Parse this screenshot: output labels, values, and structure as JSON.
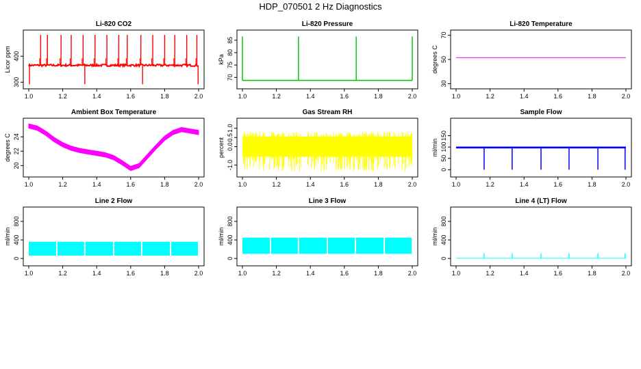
{
  "title": "HDP_070501  2 Hz Diagnostics",
  "chart_data": [
    {
      "type": "line",
      "title": "Li-820 CO2",
      "ylabel": "Licor ppm",
      "color": "#ff0000",
      "xlim": [
        1.0,
        2.0
      ],
      "ylim": [
        285,
        490
      ],
      "xticks": [
        "1.0",
        "1.2",
        "1.4",
        "1.6",
        "1.8",
        "2.0"
      ],
      "yticks": [
        "300",
        "400"
      ],
      "baseline": 365,
      "spikes_up": [
        1.07,
        1.11,
        1.19,
        1.25,
        1.32,
        1.39,
        1.46,
        1.53,
        1.58,
        1.66,
        1.73,
        1.8,
        1.86,
        1.93,
        1.99
      ],
      "spikes_down": [
        1.004,
        1.33,
        1.67,
        1.997
      ]
    },
    {
      "type": "line",
      "title": "Li-820 Pressure",
      "ylabel": "kPa",
      "color": "#00c000",
      "xlim": [
        1.0,
        2.0
      ],
      "ylim": [
        66.5,
        88
      ],
      "xticks": [
        "1.0",
        "1.2",
        "1.4",
        "1.6",
        "1.8",
        "2.0"
      ],
      "yticks": [
        "70",
        "75",
        "80",
        "85"
      ],
      "baseline": 68.8,
      "spikes_up": [
        1.0,
        1.33,
        1.67,
        2.0
      ],
      "spike_top": 86.5
    },
    {
      "type": "line",
      "title": "Li-820 Temperature",
      "ylabel": "degrees C",
      "color": "#ff00ff",
      "xlim": [
        1.0,
        2.0
      ],
      "ylim": [
        28,
        72
      ],
      "xticks": [
        "1.0",
        "1.2",
        "1.4",
        "1.6",
        "1.8",
        "2.0"
      ],
      "yticks": [
        "30",
        "50",
        "70"
      ],
      "baseline": 51.5
    },
    {
      "type": "area",
      "title": "Ambient Box Temperature",
      "ylabel": "degrees C",
      "color": "#ff00ff",
      "xlim": [
        1.0,
        2.0
      ],
      "ylim": [
        18.8,
        26.2
      ],
      "xticks": [
        "1.0",
        "1.2",
        "1.4",
        "1.6",
        "1.8",
        "2.0"
      ],
      "yticks": [
        "20",
        "22",
        "24"
      ],
      "x": [
        1.0,
        1.05,
        1.1,
        1.15,
        1.2,
        1.25,
        1.3,
        1.35,
        1.4,
        1.45,
        1.5,
        1.55,
        1.6,
        1.65,
        1.7,
        1.75,
        1.8,
        1.85,
        1.9,
        1.95,
        2.0
      ],
      "y": [
        25.5,
        25.2,
        24.5,
        23.6,
        22.9,
        22.4,
        22.1,
        21.9,
        21.7,
        21.5,
        21.1,
        20.4,
        19.6,
        20.0,
        21.3,
        22.6,
        23.8,
        24.6,
        25.0,
        24.8,
        24.6
      ],
      "band": 0.6
    },
    {
      "type": "area",
      "title": "Gas Stream RH",
      "ylabel": "percent",
      "color": "#ffff00",
      "xlim": [
        1.0,
        2.0
      ],
      "ylim": [
        -1.5,
        1.4
      ],
      "xticks": [
        "1.0",
        "1.2",
        "1.4",
        "1.6",
        "1.8",
        "2.0"
      ],
      "yticks": [
        "-1.0",
        "0.0",
        "0.5",
        "1.0"
      ],
      "band_low": -0.55,
      "band_high": 0.55,
      "min": -1.35,
      "max": 1.0
    },
    {
      "type": "line",
      "title": "Sample Flow",
      "ylabel": "ml/min",
      "color": "#0000ff",
      "xlim": [
        1.0,
        2.0
      ],
      "ylim": [
        -20,
        215
      ],
      "xticks": [
        "1.0",
        "1.2",
        "1.4",
        "1.6",
        "1.8",
        "2.0"
      ],
      "yticks": [
        "0",
        "50",
        "100",
        "150"
      ],
      "baseline": 98,
      "dips": [
        1.165,
        1.33,
        1.5,
        1.665,
        1.835,
        1.995
      ]
    },
    {
      "type": "area",
      "title": "Line 2 Flow",
      "ylabel": "ml/min",
      "color": "#00ffff",
      "xlim": [
        1.0,
        2.0
      ],
      "ylim": [
        -100,
        1050
      ],
      "xticks": [
        "1.0",
        "1.2",
        "1.4",
        "1.6",
        "1.8",
        "2.0"
      ],
      "yticks": [
        "0",
        "400",
        "800"
      ],
      "band_low": 60,
      "band_high": 360,
      "gaps": [
        1.165,
        1.33,
        1.5,
        1.665,
        1.835
      ]
    },
    {
      "type": "area",
      "title": "Line 3 Flow",
      "ylabel": "ml/min",
      "color": "#00ffff",
      "xlim": [
        1.0,
        2.0
      ],
      "ylim": [
        -100,
        1050
      ],
      "xticks": [
        "1.0",
        "1.2",
        "1.4",
        "1.6",
        "1.8",
        "2.0"
      ],
      "yticks": [
        "0",
        "400",
        "800"
      ],
      "band_low": 100,
      "band_high": 450,
      "gaps": [
        1.165,
        1.33,
        1.5,
        1.665,
        1.835
      ]
    },
    {
      "type": "line",
      "title": "Line 4 (LT) Flow",
      "ylabel": "ml/min",
      "color": "#00ffff",
      "xlim": [
        1.0,
        2.0
      ],
      "ylim": [
        -100,
        1050
      ],
      "xticks": [
        "1.0",
        "1.2",
        "1.4",
        "1.6",
        "1.8",
        "2.0"
      ],
      "yticks": [
        "0",
        "400",
        "800"
      ],
      "baseline": 5,
      "spikes_up": [
        1.165,
        1.33,
        1.5,
        1.665,
        1.835,
        1.995
      ],
      "spike_top": 110
    }
  ]
}
